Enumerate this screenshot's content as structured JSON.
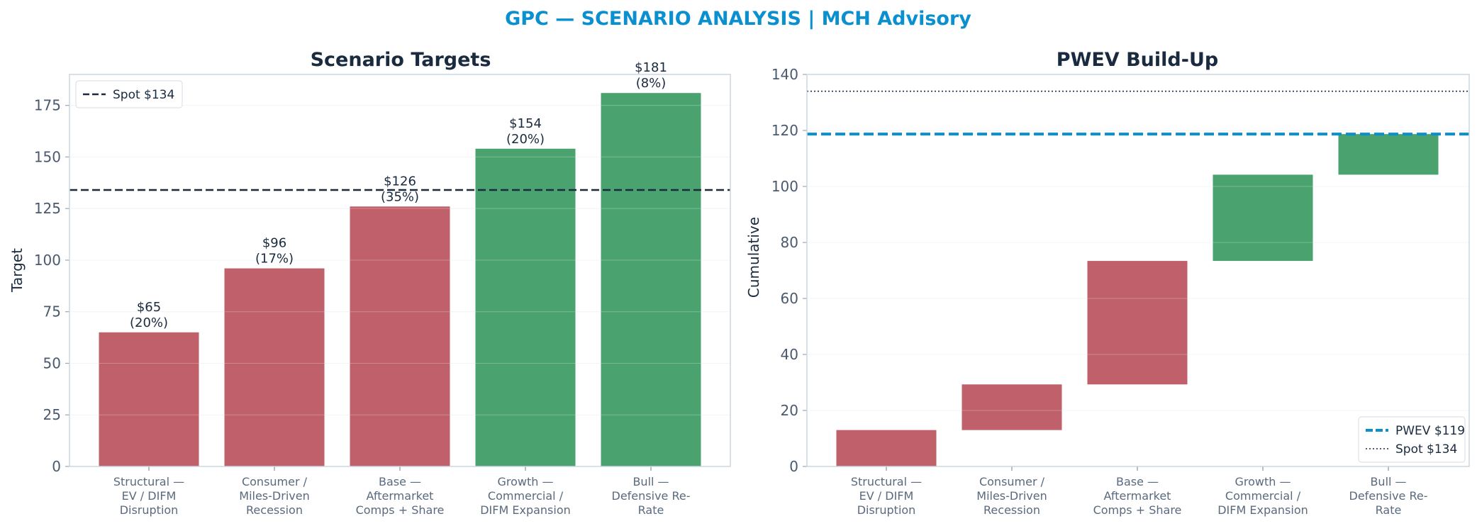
{
  "suptitle": "GPC — SCENARIO ANALYSIS | MCH Advisory",
  "colors": {
    "downside": "#c0606b",
    "upside": "#4aa36f",
    "spot_line": "#1a2a3f",
    "pwev_line": "#0a8fcf",
    "title": "#0a8fcf"
  },
  "chart_data": [
    {
      "type": "bar",
      "title": "Scenario Targets",
      "xlabel": "",
      "ylabel": "Target",
      "ylim": [
        0,
        190
      ],
      "yticks": [
        "0",
        "25",
        "50",
        "75",
        "100",
        "125",
        "150",
        "175"
      ],
      "categories": [
        [
          "Structural —",
          "EV / DIFM",
          "Disruption"
        ],
        [
          "Consumer /",
          "Miles-Driven",
          "Recession"
        ],
        [
          "Base —",
          "Aftermarket",
          "Comps + Share"
        ],
        [
          "Growth —",
          "Commercial /",
          "DIFM Expansion"
        ],
        [
          "Bull —",
          "Defensive Re-",
          "Rate"
        ]
      ],
      "values": [
        65,
        96,
        126,
        154,
        181
      ],
      "probabilities": [
        "20%",
        "17%",
        "35%",
        "20%",
        "8%"
      ],
      "data_labels": [
        [
          "$65",
          "(20%)"
        ],
        [
          "$96",
          "(17%)"
        ],
        [
          "$126",
          "(35%)"
        ],
        [
          "$154",
          "(20%)"
        ],
        [
          "$181",
          "(8%)"
        ]
      ],
      "bar_colors": [
        "downside",
        "downside",
        "downside",
        "upside",
        "upside"
      ],
      "reference_lines": [
        {
          "name": "Spot $134",
          "value": 134,
          "style": "dashed"
        }
      ],
      "grid": true,
      "legend": {
        "position": "top-left",
        "entries": [
          "Spot $134"
        ]
      }
    },
    {
      "type": "bar",
      "subtype": "waterfall",
      "title": "PWEV Build-Up",
      "xlabel": "",
      "ylabel": "Cumulative",
      "ylim": [
        0,
        140
      ],
      "yticks": [
        "0",
        "20",
        "40",
        "60",
        "80",
        "100",
        "120",
        "140"
      ],
      "categories": [
        [
          "Structural —",
          "EV / DIFM",
          "Disruption"
        ],
        [
          "Consumer /",
          "Miles-Driven",
          "Recession"
        ],
        [
          "Base —",
          "Aftermarket",
          "Comps + Share"
        ],
        [
          "Growth —",
          "Commercial /",
          "DIFM Expansion"
        ],
        [
          "Bull —",
          "Defensive Re-",
          "Rate"
        ]
      ],
      "segments": [
        {
          "start": 0,
          "end": 13.0
        },
        {
          "start": 13.0,
          "end": 29.3
        },
        {
          "start": 29.3,
          "end": 73.4
        },
        {
          "start": 73.4,
          "end": 104.2
        },
        {
          "start": 104.2,
          "end": 118.7
        }
      ],
      "bar_colors": [
        "downside",
        "downside",
        "downside",
        "upside",
        "upside"
      ],
      "reference_lines": [
        {
          "name": "PWEV $119",
          "value": 118.7,
          "style": "dashed-thick"
        },
        {
          "name": "Spot $134",
          "value": 134,
          "style": "dotted"
        }
      ],
      "grid": true,
      "legend": {
        "position": "bottom-right",
        "entries": [
          "PWEV $119",
          "Spot $134"
        ]
      }
    }
  ]
}
